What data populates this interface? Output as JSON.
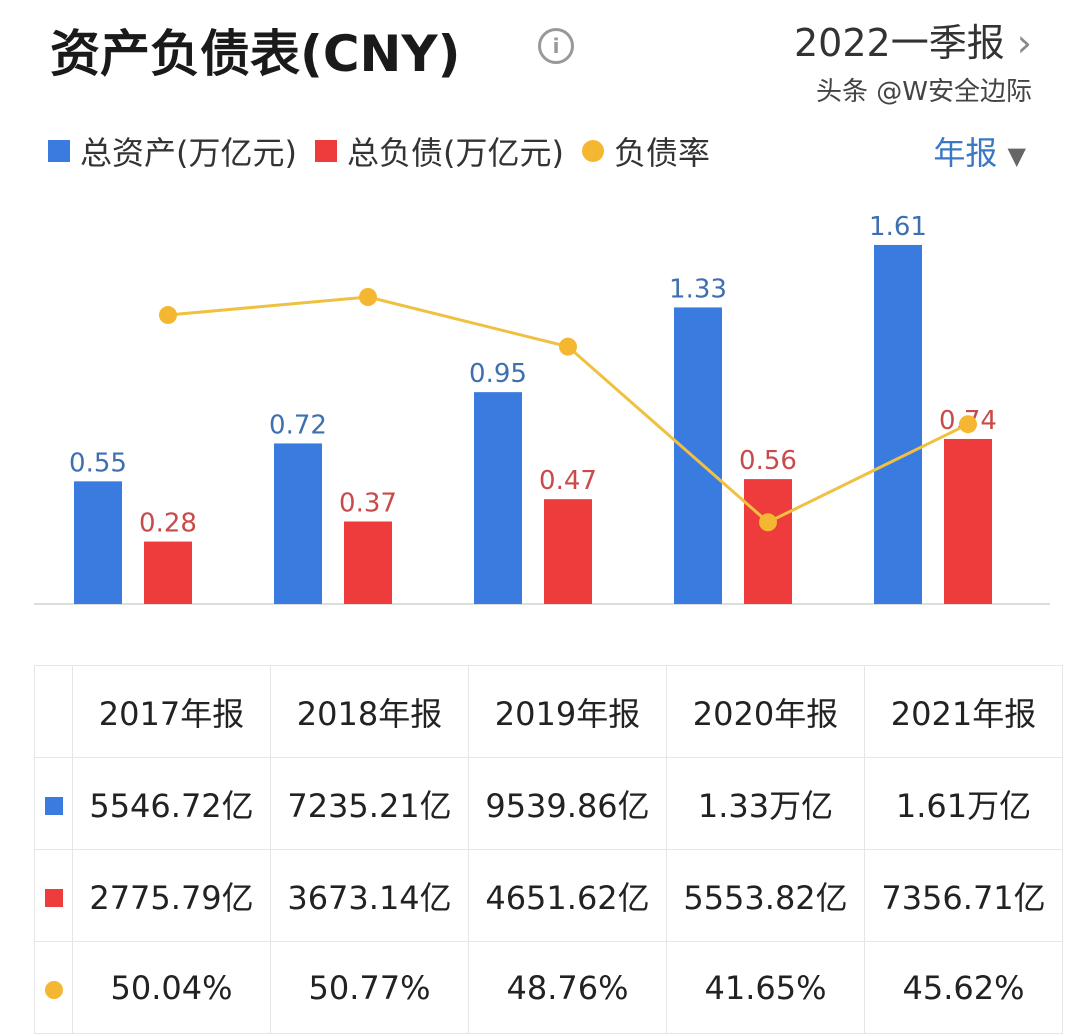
{
  "header": {
    "title": "资产负债表(CNY)",
    "info_icon": "info-icon",
    "period": "2022一季报",
    "chevron": "›"
  },
  "legend": {
    "items": [
      {
        "label": "总资产(万亿元)",
        "color": "#3a7be0"
      },
      {
        "label": "总负债(万亿元)",
        "color": "#ee3b3b"
      },
      {
        "label": "负债率",
        "color": "#f5b731"
      }
    ],
    "selector": "年报",
    "selector_arrow": "▼"
  },
  "chart_data": {
    "type": "bar+line",
    "categories": [
      "2017年报",
      "2018年报",
      "2019年报",
      "2020年报",
      "2021年报"
    ],
    "series": [
      {
        "name": "总资产(万亿元)",
        "type": "bar",
        "color": "#3a7be0",
        "values": [
          0.55,
          0.72,
          0.95,
          1.33,
          1.61
        ],
        "labels": [
          "0.55",
          "0.72",
          "0.95",
          "1.33",
          "1.61"
        ]
      },
      {
        "name": "总负债(万亿元)",
        "type": "bar",
        "color": "#ee3b3b",
        "values": [
          0.28,
          0.37,
          0.47,
          0.56,
          0.74
        ],
        "labels": [
          "0.28",
          "0.37",
          "0.47",
          "0.56",
          "0.74"
        ]
      },
      {
        "name": "负债率",
        "type": "line",
        "color": "#f5b731",
        "values": [
          50.04,
          50.77,
          48.76,
          41.65,
          45.62
        ]
      }
    ]
  },
  "table": {
    "headers": [
      "2017年报",
      "2018年报",
      "2019年报",
      "2020年报",
      "2021年报"
    ],
    "rows": [
      {
        "color": "#3a7be0",
        "shape": "square",
        "cells": [
          "5546.72亿",
          "7235.21亿",
          "9539.86亿",
          "1.33万亿",
          "1.61万亿"
        ]
      },
      {
        "color": "#ee3b3b",
        "shape": "square",
        "cells": [
          "2775.79亿",
          "3673.14亿",
          "4651.62亿",
          "5553.82亿",
          "7356.71亿"
        ]
      },
      {
        "color": "#f5b731",
        "shape": "circle",
        "cells": [
          "50.04%",
          "50.77%",
          "48.76%",
          "41.65%",
          "45.62%"
        ]
      }
    ]
  },
  "watermark": "头条 @W安全边际"
}
